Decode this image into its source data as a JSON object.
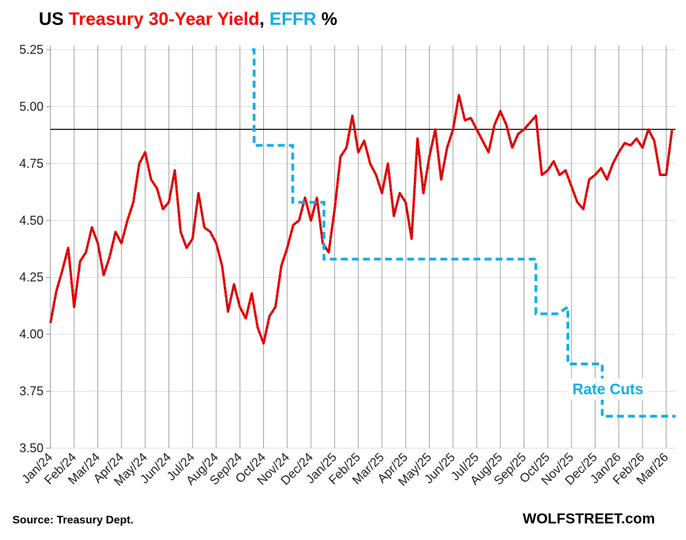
{
  "chart_data": {
    "type": "line",
    "title_parts": [
      "US ",
      ", ",
      " %"
    ],
    "source": "Source: Treasury Dept.",
    "watermark": "WOLFSTREET.com",
    "annotation": "Rate Cuts",
    "xlim": [
      0,
      26.4
    ],
    "ylim": [
      3.5,
      5.25
    ],
    "xticks": [
      {
        "value": 0,
        "label": "Jan/24"
      },
      {
        "value": 1,
        "label": "Feb/24"
      },
      {
        "value": 2,
        "label": "Mar/24"
      },
      {
        "value": 3,
        "label": "Apr/24"
      },
      {
        "value": 4,
        "label": "May/24"
      },
      {
        "value": 5,
        "label": "Jun/24"
      },
      {
        "value": 6,
        "label": "Jul/24"
      },
      {
        "value": 7,
        "label": "Aug/24"
      },
      {
        "value": 8,
        "label": "Sep/24"
      },
      {
        "value": 9,
        "label": "Oct/24"
      },
      {
        "value": 10,
        "label": "Nov/24"
      },
      {
        "value": 11,
        "label": "Dec/24"
      },
      {
        "value": 12,
        "label": "Jan/25"
      },
      {
        "value": 13,
        "label": "Feb/25"
      },
      {
        "value": 14,
        "label": "Mar/25"
      },
      {
        "value": 15,
        "label": "Apr/25"
      },
      {
        "value": 16,
        "label": "May/25"
      },
      {
        "value": 17,
        "label": "Jun/25"
      },
      {
        "value": 18,
        "label": "Jul/25"
      },
      {
        "value": 19,
        "label": "Aug/25"
      },
      {
        "value": 20,
        "label": "Sep/25"
      },
      {
        "value": 21,
        "label": "Oct/25"
      },
      {
        "value": 22,
        "label": "Nov/25"
      },
      {
        "value": 23,
        "label": "Dec/25"
      },
      {
        "value": 24,
        "label": "Jan/26"
      },
      {
        "value": 25,
        "label": "Feb/26"
      },
      {
        "value": 26,
        "label": "Mar/26"
      }
    ],
    "yticks": [
      {
        "value": 3.5,
        "label": "3.50"
      },
      3.75,
      {
        "value": 4,
        "label": "4.00"
      },
      4.25,
      {
        "value": 4.5,
        "label": "4.50"
      },
      4.75,
      {
        "value": 5,
        "label": "5.00"
      },
      5.25
    ],
    "grid": true,
    "reference_line": 4.9,
    "series": [
      {
        "name": "Treasury 30-Year Yield",
        "color": "#ff0000",
        "x": [
          0,
          0.25,
          0.5,
          0.75,
          1,
          1.25,
          1.5,
          1.75,
          2,
          2.25,
          2.5,
          2.75,
          3,
          3.25,
          3.5,
          3.75,
          4,
          4.25,
          4.5,
          4.75,
          5,
          5.25,
          5.5,
          5.75,
          6,
          6.25,
          6.5,
          6.75,
          7,
          7.25,
          7.5,
          7.75,
          8,
          8.25,
          8.5,
          8.75,
          9,
          9.25,
          9.5,
          9.75,
          10,
          10.25,
          10.5,
          10.75,
          11,
          11.25,
          11.5,
          11.75,
          12,
          12.25,
          12.5,
          12.75,
          13,
          13.25,
          13.5,
          13.75,
          14,
          14.25,
          14.5,
          14.75,
          15,
          15.25,
          15.5,
          15.75,
          16,
          16.25,
          16.5,
          16.75,
          17,
          17.25,
          17.5,
          17.75,
          18,
          18.25,
          18.5,
          18.75,
          19,
          19.25,
          19.5,
          19.75,
          20,
          20.25,
          20.5,
          20.75,
          21,
          21.25,
          21.5,
          21.75,
          22,
          22.25,
          22.5,
          22.75,
          23,
          23.25,
          23.5,
          23.75,
          24,
          24.25,
          24.5,
          24.75,
          25,
          25.25,
          25.5,
          25.75,
          26,
          26.25
        ],
        "values": [
          4.05,
          4.19,
          4.28,
          4.38,
          4.12,
          4.32,
          4.36,
          4.47,
          4.4,
          4.26,
          4.34,
          4.45,
          4.4,
          4.5,
          4.58,
          4.75,
          4.8,
          4.68,
          4.64,
          4.55,
          4.58,
          4.72,
          4.45,
          4.38,
          4.42,
          4.62,
          4.47,
          4.45,
          4.4,
          4.3,
          4.1,
          4.22,
          4.12,
          4.07,
          4.18,
          4.03,
          3.96,
          4.08,
          4.12,
          4.3,
          4.38,
          4.48,
          4.5,
          4.6,
          4.5,
          4.6,
          4.4,
          4.36,
          4.55,
          4.78,
          4.82,
          4.96,
          4.8,
          4.85,
          4.75,
          4.7,
          4.62,
          4.75,
          4.52,
          4.62,
          4.58,
          4.42,
          4.86,
          4.62,
          4.78,
          4.9,
          4.68,
          4.82,
          4.9,
          5.05,
          4.94,
          4.95,
          4.9,
          4.85,
          4.8,
          4.92,
          4.98,
          4.92,
          4.82,
          4.88,
          4.9,
          4.93,
          4.96,
          4.7,
          4.72,
          4.76,
          4.7,
          4.72,
          4.65,
          4.58,
          4.55,
          4.68,
          4.7,
          4.73,
          4.68,
          4.75,
          4.8,
          4.84,
          4.83,
          4.86,
          4.82,
          4.9,
          4.85,
          4.7,
          4.7,
          4.9
        ]
      },
      {
        "name": "EFFR",
        "color": "#14aee8",
        "dashed": true,
        "x": [
          8.51,
          8.6,
          8.6,
          10.23,
          10.23,
          11.55,
          11.55,
          20.5,
          20.5,
          21.4,
          21.85,
          21.85,
          23.3,
          23.3,
          26.4
        ],
        "values": [
          5.25,
          5.25,
          4.83,
          4.83,
          4.58,
          4.58,
          4.33,
          4.33,
          4.09,
          4.09,
          4.12,
          3.87,
          3.87,
          3.64,
          3.64
        ]
      }
    ]
  }
}
